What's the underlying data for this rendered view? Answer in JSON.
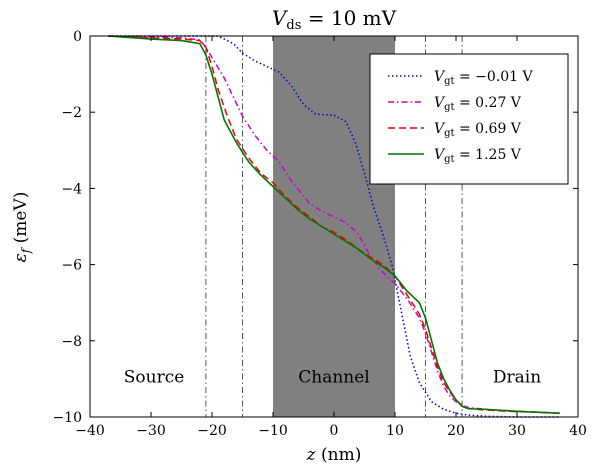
{
  "chart_data": {
    "type": "line",
    "title_main": "V",
    "title_sub": "ds",
    "title_rest": " = 10 mV",
    "xlabel_var": "z",
    "xlabel_unit": " (nm)",
    "ylabel_var": "ε",
    "ylabel_sub": "f",
    "ylabel_unit": " (meV)",
    "xlim": [
      -40,
      40
    ],
    "ylim": [
      -10,
      0
    ],
    "xticks": [
      -40,
      -30,
      -20,
      -10,
      0,
      10,
      20,
      30,
      40
    ],
    "xtick_labels": [
      "−40",
      "−30",
      "−20",
      "−10",
      "0",
      "10",
      "20",
      "30",
      "40"
    ],
    "yticks": [
      0,
      -2,
      -4,
      -6,
      -8,
      -10
    ],
    "ytick_labels": [
      "0",
      "−2",
      "−4",
      "−6",
      "−8",
      "−10"
    ],
    "channel_region": [
      -10,
      10
    ],
    "channel_color": "#808080",
    "vertical_lines": [
      {
        "x": -21,
        "style": "dash-dot"
      },
      {
        "x": -15,
        "style": "dash-dot"
      },
      {
        "x": 15,
        "style": "dash-dot"
      },
      {
        "x": 21,
        "style": "dash-dot"
      }
    ],
    "region_labels": [
      {
        "text": "Source",
        "x": -29.5,
        "y": -9.1
      },
      {
        "text": "Channel",
        "x": 0,
        "y": -9.1
      },
      {
        "text": "Drain",
        "x": 30,
        "y": -9.1
      }
    ],
    "legend_position": "top-right",
    "series": [
      {
        "var": "V",
        "sub": "gt",
        "value": " = −0.01 V",
        "color": "#0000cc",
        "style": "dotted",
        "x": [
          -37,
          -30,
          -24,
          -22,
          -19,
          -16.5,
          -15,
          -13,
          -11,
          -9,
          -7,
          -5,
          -3,
          0,
          2,
          3.5,
          5,
          6.5,
          8,
          9.5,
          11,
          12.5,
          14,
          16,
          18,
          20,
          22,
          25,
          30,
          37
        ],
        "y": [
          0,
          0,
          0,
          0,
          0,
          -0.2,
          -0.45,
          -0.65,
          -0.8,
          -0.95,
          -1.3,
          -1.8,
          -2.05,
          -2.08,
          -2.25,
          -2.8,
          -3.6,
          -4.5,
          -5.2,
          -6.0,
          -7.2,
          -8.4,
          -9.1,
          -9.6,
          -9.8,
          -9.9,
          -9.95,
          -9.98,
          -10,
          -10
        ]
      },
      {
        "var": "V",
        "sub": "gt",
        "value": " = 0.27 V",
        "color": "#cc00cc",
        "style": "dash-dot",
        "x": [
          -37,
          -30,
          -25,
          -22,
          -21,
          -19.5,
          -18,
          -16.5,
          -15,
          -13,
          -11,
          -9,
          -7,
          -4,
          -2,
          0,
          2,
          4,
          6,
          8,
          10,
          12,
          14,
          15,
          16,
          17,
          18,
          19,
          20,
          21,
          22,
          25,
          30,
          37
        ],
        "y": [
          0,
          -0.02,
          -0.05,
          -0.1,
          -0.3,
          -0.7,
          -1.1,
          -1.6,
          -2.1,
          -2.6,
          -3.0,
          -3.3,
          -3.8,
          -4.4,
          -4.6,
          -4.75,
          -4.9,
          -5.2,
          -5.8,
          -6.2,
          -6.5,
          -6.9,
          -7.4,
          -7.8,
          -8.3,
          -8.8,
          -9.2,
          -9.45,
          -9.6,
          -9.7,
          -9.75,
          -9.8,
          -9.85,
          -9.9
        ]
      },
      {
        "var": "V",
        "sub": "gt",
        "value": " = 0.69 V",
        "color": "#ee0000",
        "style": "dashed",
        "x": [
          -37,
          -30,
          -25,
          -22,
          -21,
          -20,
          -19,
          -17.5,
          -16,
          -14,
          -12,
          -10,
          -8,
          -6,
          -4,
          -2,
          0,
          2,
          4,
          6,
          8,
          10,
          12,
          14,
          15,
          16,
          17,
          18,
          19,
          20,
          21,
          22,
          25,
          30,
          37
        ],
        "y": [
          0,
          -0.05,
          -0.08,
          -0.12,
          -0.3,
          -0.8,
          -1.4,
          -2.1,
          -2.7,
          -3.2,
          -3.6,
          -3.85,
          -4.2,
          -4.5,
          -4.75,
          -5.0,
          -5.15,
          -5.35,
          -5.6,
          -5.8,
          -6.0,
          -6.3,
          -6.8,
          -7.3,
          -7.7,
          -8.2,
          -8.7,
          -9.1,
          -9.35,
          -9.55,
          -9.7,
          -9.78,
          -9.82,
          -9.86,
          -9.9
        ]
      },
      {
        "var": "V",
        "sub": "gt",
        "value": " = 1.25 V",
        "color": "#007700",
        "style": "solid",
        "x": [
          -37,
          -30,
          -25,
          -22,
          -21,
          -20,
          -19,
          -18,
          -16,
          -14,
          -12,
          -10,
          -8,
          -6,
          -4,
          -2,
          0,
          2,
          4,
          6,
          8,
          10,
          12,
          14,
          15,
          16,
          17,
          18,
          19,
          20,
          21,
          22,
          25,
          30,
          37
        ],
        "y": [
          0,
          -0.08,
          -0.12,
          -0.2,
          -0.5,
          -1.0,
          -1.6,
          -2.2,
          -2.8,
          -3.3,
          -3.65,
          -3.95,
          -4.25,
          -4.55,
          -4.8,
          -5.0,
          -5.2,
          -5.4,
          -5.6,
          -5.85,
          -6.05,
          -6.3,
          -6.7,
          -7.0,
          -7.4,
          -8.0,
          -8.6,
          -9.0,
          -9.3,
          -9.55,
          -9.72,
          -9.78,
          -9.8,
          -9.85,
          -9.9
        ]
      }
    ]
  }
}
